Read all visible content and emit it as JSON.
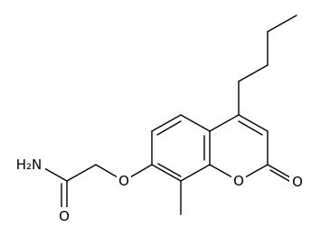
{
  "atoms": [
    {
      "label": "H₂N"
    },
    {
      "label": "O"
    },
    {
      "label": "O"
    },
    {
      "label": "O"
    },
    {
      "label": "O"
    }
  ]
}
